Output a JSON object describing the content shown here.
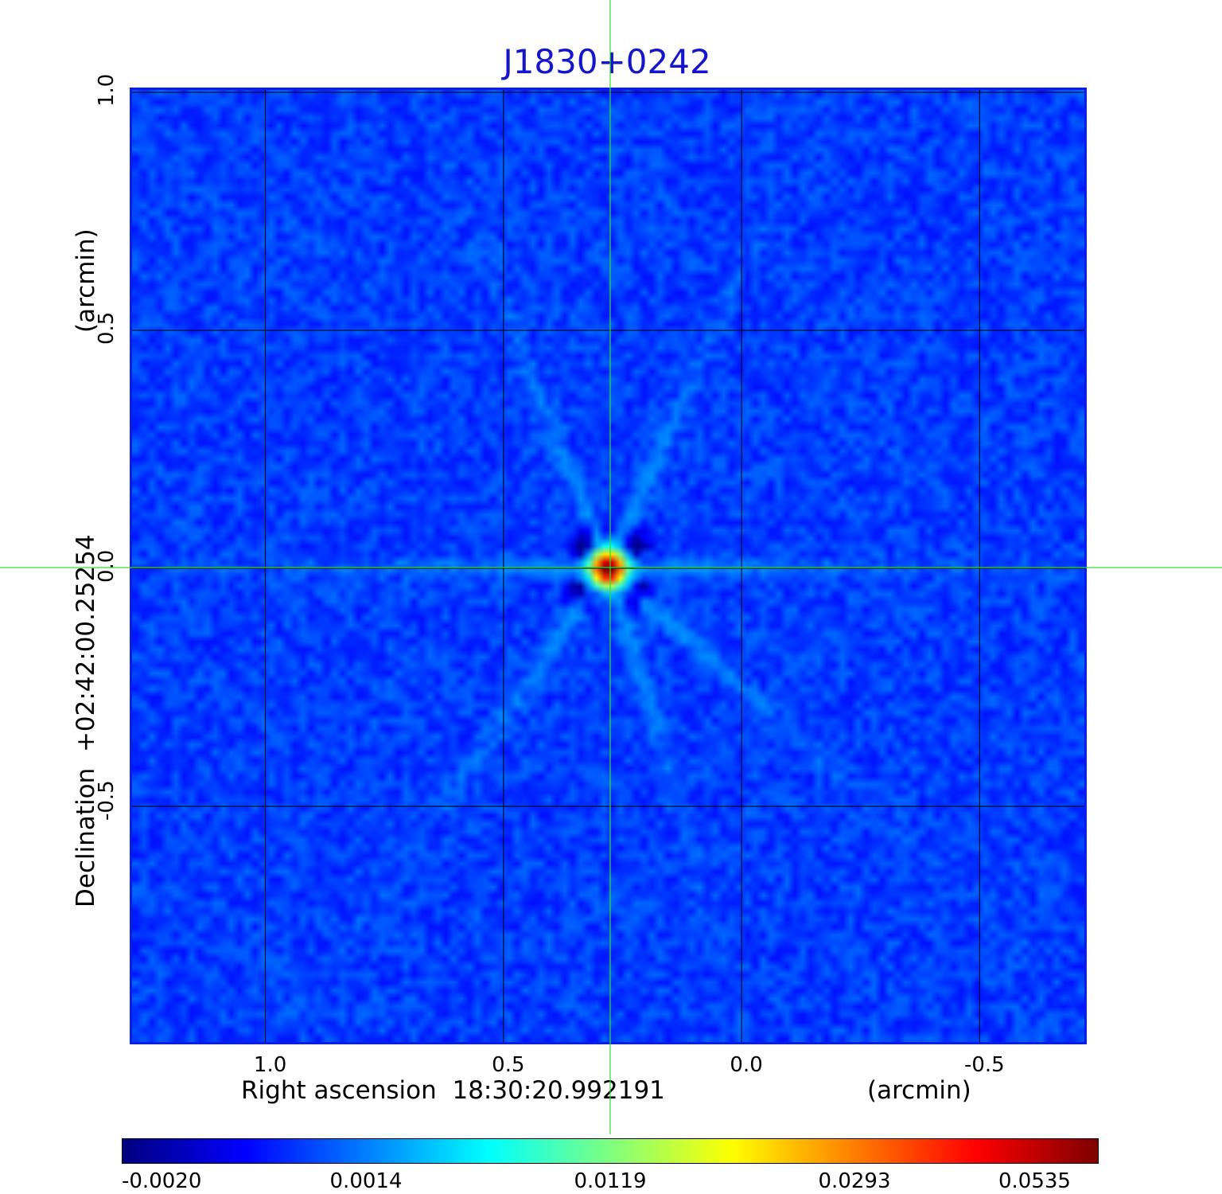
{
  "chart_data": {
    "type": "heatmap",
    "title": "J1830+0242",
    "xlabel": "Right ascension  18:30:20.992191",
    "xunit": "(arcmin)",
    "ylabel": "Declination  +02:42:00.25254",
    "yunit": "(arcmin)",
    "x_ticks": [
      "1.0",
      "0.5",
      "0.0",
      "-0.5"
    ],
    "y_ticks": [
      "1.0",
      "0.5",
      "0.0",
      "-0.5"
    ],
    "x_tick_values": [
      1.0,
      0.5,
      0.0,
      -0.5
    ],
    "y_tick_values": [
      1.0,
      0.5,
      0.0,
      -0.5
    ],
    "xlim": [
      1.28,
      -0.72
    ],
    "ylim": [
      -0.995,
      1.005
    ],
    "grid": true,
    "source": {
      "x": 0.28,
      "y": 0.0,
      "peak": 0.0535
    },
    "background_level": 0.0005,
    "colorbar": {
      "colormap": "jet",
      "ticks": [
        "-0.0020",
        "0.0014",
        "0.0119",
        "0.0293",
        "0.0535"
      ],
      "tick_values": [
        -0.002,
        0.0014,
        0.0119,
        0.0293,
        0.0535
      ],
      "placement": "bottom"
    }
  },
  "colors": {
    "title": "#1515cc",
    "frame": "#0a1fe0",
    "crosshair": "#33dd33",
    "grid": "#000000"
  }
}
